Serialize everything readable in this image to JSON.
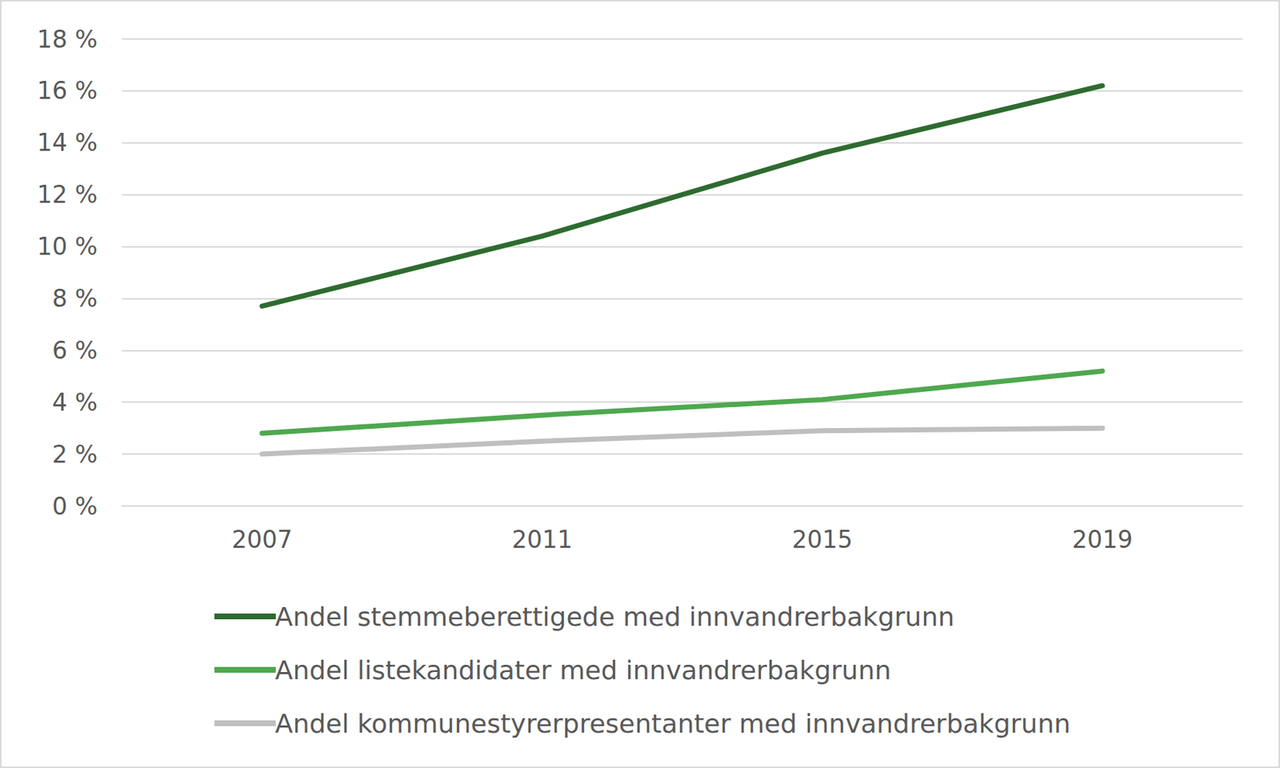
{
  "chart_data": {
    "type": "line",
    "categories": [
      "2007",
      "2011",
      "2015",
      "2019"
    ],
    "series": [
      {
        "name": "Andel stemmeberettigede med innvandrerbakgrunn",
        "color": "#2e6b30",
        "values": [
          7.7,
          10.4,
          13.6,
          16.2
        ]
      },
      {
        "name": "Andel listekandidater med innvandrerbakgrunn",
        "color": "#4ea84f",
        "values": [
          2.8,
          3.5,
          4.1,
          5.2
        ]
      },
      {
        "name": "Andel kommunestyrerpresentanter med innvandrerbakgrunn",
        "color": "#bfbfbf",
        "values": [
          2.0,
          2.5,
          2.9,
          3.0
        ]
      }
    ],
    "ylim": [
      0,
      18
    ],
    "yticks": [
      {
        "value": 0,
        "label": "0 %"
      },
      {
        "value": 2,
        "label": "2 %"
      },
      {
        "value": 4,
        "label": "4 %"
      },
      {
        "value": 6,
        "label": "6 %"
      },
      {
        "value": 8,
        "label": "8 %"
      },
      {
        "value": 10,
        "label": "10 %"
      },
      {
        "value": 12,
        "label": "12 %"
      },
      {
        "value": 14,
        "label": "14 %"
      },
      {
        "value": 16,
        "label": "16 %"
      },
      {
        "value": 18,
        "label": "18 %"
      }
    ],
    "grid": true,
    "legend": "bottom"
  }
}
